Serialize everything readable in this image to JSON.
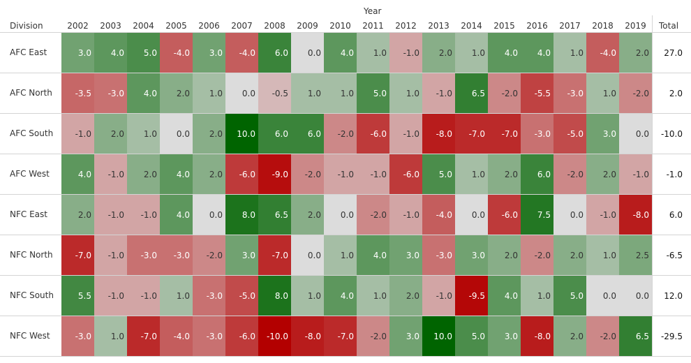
{
  "chart_data": {
    "type": "heatmap",
    "column_group_label": "Year",
    "row_header": "Division",
    "total_header": "Total",
    "x": [
      "2002",
      "2003",
      "2004",
      "2005",
      "2006",
      "2007",
      "2008",
      "2009",
      "2010",
      "2011",
      "2012",
      "2013",
      "2014",
      "2015",
      "2016",
      "2017",
      "2018",
      "2019"
    ],
    "rows": [
      {
        "division": "AFC East",
        "values": [
          "3.0",
          "4.0",
          "5.0",
          "-4.0",
          "3.0",
          "-4.0",
          "6.0",
          "0.0",
          "4.0",
          "1.0",
          "-1.0",
          "2.0",
          "1.0",
          "4.0",
          "4.0",
          "1.0",
          "-4.0",
          "2.0"
        ],
        "total": "27.0"
      },
      {
        "division": "AFC North",
        "values": [
          "-3.5",
          "-3.0",
          "4.0",
          "2.0",
          "1.0",
          "0.0",
          "-0.5",
          "1.0",
          "1.0",
          "5.0",
          "1.0",
          "-1.0",
          "6.5",
          "-2.0",
          "-5.5",
          "-3.0",
          "1.0",
          "-2.0"
        ],
        "total": "2.0"
      },
      {
        "division": "AFC South",
        "values": [
          "-1.0",
          "2.0",
          "1.0",
          "0.0",
          "2.0",
          "10.0",
          "6.0",
          "6.0",
          "-2.0",
          "-6.0",
          "-1.0",
          "-8.0",
          "-7.0",
          "-7.0",
          "-3.0",
          "-5.0",
          "3.0",
          "0.0"
        ],
        "total": "-10.0"
      },
      {
        "division": "AFC West",
        "values": [
          "4.0",
          "-1.0",
          "2.0",
          "4.0",
          "2.0",
          "-6.0",
          "-9.0",
          "-2.0",
          "-1.0",
          "-1.0",
          "-6.0",
          "5.0",
          "1.0",
          "2.0",
          "6.0",
          "-2.0",
          "2.0",
          "-1.0"
        ],
        "total": "-1.0"
      },
      {
        "division": "NFC East",
        "values": [
          "2.0",
          "-1.0",
          "-1.0",
          "4.0",
          "0.0",
          "8.0",
          "6.5",
          "2.0",
          "0.0",
          "-2.0",
          "-1.0",
          "-4.0",
          "0.0",
          "-6.0",
          "7.5",
          "0.0",
          "-1.0",
          "-8.0"
        ],
        "total": "6.0"
      },
      {
        "division": "NFC North",
        "values": [
          "-7.0",
          "-1.0",
          "-3.0",
          "-3.0",
          "-2.0",
          "3.0",
          "-7.0",
          "0.0",
          "1.0",
          "4.0",
          "3.0",
          "-3.0",
          "3.0",
          "2.0",
          "-2.0",
          "2.0",
          "1.0",
          "2.5"
        ],
        "total": "-6.5"
      },
      {
        "division": "NFC South",
        "values": [
          "5.5",
          "-1.0",
          "-1.0",
          "1.0",
          "-3.0",
          "-5.0",
          "8.0",
          "1.0",
          "4.0",
          "1.0",
          "2.0",
          "-1.0",
          "-9.5",
          "4.0",
          "1.0",
          "5.0",
          "0.0",
          "0.0"
        ],
        "total": "12.0"
      },
      {
        "division": "NFC West",
        "values": [
          "-3.0",
          "1.0",
          "-7.0",
          "-4.0",
          "-3.0",
          "-6.0",
          "-10.0",
          "-8.0",
          "-7.0",
          "-2.0",
          "3.0",
          "10.0",
          "5.0",
          "3.0",
          "-8.0",
          "2.0",
          "-2.0",
          "6.5"
        ],
        "total": "-29.5"
      }
    ],
    "color_scale": {
      "negative": "#b30000",
      "zero": "#dcdcdc",
      "positive": "#006400",
      "max_abs": 10
    }
  }
}
